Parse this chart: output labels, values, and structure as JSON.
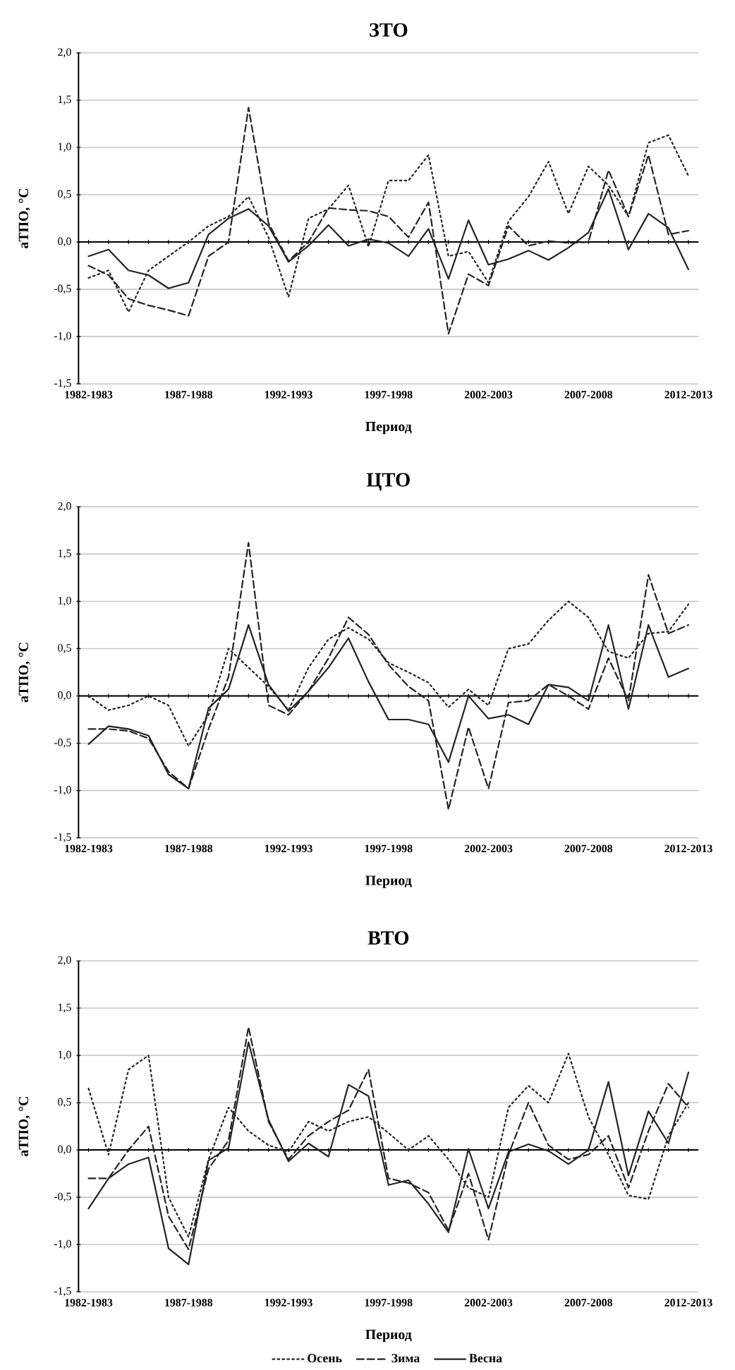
{
  "chart_data": [
    {
      "type": "line",
      "title": "ЗТО",
      "xlabel": "Период",
      "ylabel": "аТПО, °С",
      "categories": [
        "1982-1983",
        null,
        null,
        null,
        null,
        "1987-1988",
        null,
        null,
        null,
        null,
        "1992-1993",
        null,
        null,
        null,
        null,
        "1997-1998",
        null,
        null,
        null,
        null,
        "2002-2003",
        null,
        null,
        null,
        null,
        "2007-2008",
        null,
        null,
        null,
        null,
        "2012-2013"
      ],
      "ylim": [
        -1.5,
        2.0
      ],
      "yticks": [
        {
          "value": -1.5,
          "label": "-1,5"
        },
        {
          "value": -1.0,
          "label": "-1,0"
        },
        {
          "value": -0.5,
          "label": "-0,5"
        },
        {
          "value": 0,
          "label": "0,0"
        },
        {
          "value": 0.5,
          "label": "0,5"
        },
        {
          "value": 1.0,
          "label": "1,0"
        },
        {
          "value": 1.5,
          "label": "1,5"
        },
        {
          "value": 2.0,
          "label": "2,0"
        }
      ],
      "grid": "y",
      "series": [
        {
          "color": "#222222",
          "line_style": "dotted",
          "values": [
            -0.38,
            -0.3,
            -0.74,
            -0.3,
            -0.15,
            0.0,
            0.17,
            0.27,
            0.48,
            0.05,
            -0.58,
            0.25,
            0.35,
            0.6,
            -0.05,
            0.65,
            0.65,
            0.92,
            -0.15,
            -0.1,
            -0.43,
            0.22,
            0.48,
            0.85,
            0.3,
            0.8,
            0.6,
            0.27,
            1.05,
            1.13,
            0.7
          ]
        },
        {
          "color": "#222222",
          "line_style": "dashed",
          "values": [
            -0.25,
            -0.35,
            -0.6,
            -0.67,
            -0.72,
            -0.78,
            -0.15,
            0.0,
            1.42,
            0.2,
            -0.2,
            0.0,
            0.36,
            0.34,
            0.33,
            0.27,
            0.05,
            0.42,
            -0.97,
            -0.34,
            -0.46,
            0.17,
            -0.04,
            0.01,
            -0.01,
            0.0,
            0.76,
            0.27,
            0.92,
            0.08,
            0.12
          ]
        },
        {
          "color": "#222222",
          "line_style": "solid",
          "values": [
            -0.15,
            -0.08,
            -0.3,
            -0.35,
            -0.49,
            -0.43,
            0.08,
            0.25,
            0.35,
            0.17,
            -0.21,
            -0.04,
            0.18,
            -0.04,
            0.03,
            -0.01,
            -0.15,
            0.14,
            -0.39,
            0.23,
            -0.24,
            -0.18,
            -0.09,
            -0.19,
            -0.06,
            0.1,
            0.56,
            -0.08,
            0.3,
            0.15,
            -0.29
          ]
        }
      ]
    },
    {
      "type": "line",
      "title": "ЦТО",
      "xlabel": "Период",
      "ylabel": "аТПО, °С",
      "categories": [
        "1982-1983",
        null,
        null,
        null,
        null,
        "1987-1988",
        null,
        null,
        null,
        null,
        "1992-1993",
        null,
        null,
        null,
        null,
        "1997-1998",
        null,
        null,
        null,
        null,
        "2002-2003",
        null,
        null,
        null,
        null,
        "2007-2008",
        null,
        null,
        null,
        null,
        "2012-2013"
      ],
      "ylim": [
        -1.5,
        2.0
      ],
      "yticks": [
        {
          "value": -1.5,
          "label": "-1,5"
        },
        {
          "value": -1.0,
          "label": "-1,0"
        },
        {
          "value": -0.5,
          "label": "-0,5"
        },
        {
          "value": 0,
          "label": "0,0"
        },
        {
          "value": 0.5,
          "label": "0,5"
        },
        {
          "value": 1.0,
          "label": "1,0"
        },
        {
          "value": 1.5,
          "label": "1,5"
        },
        {
          "value": 2.0,
          "label": "2,0"
        }
      ],
      "grid": "y",
      "series": [
        {
          "color": "#222222",
          "line_style": "dotted",
          "values": [
            0.0,
            -0.15,
            -0.1,
            0.0,
            -0.1,
            -0.53,
            -0.2,
            0.5,
            0.3,
            0.1,
            -0.15,
            0.3,
            0.6,
            0.72,
            0.6,
            0.35,
            0.25,
            0.14,
            -0.12,
            0.07,
            -0.1,
            0.5,
            0.55,
            0.8,
            1.0,
            0.83,
            0.47,
            0.4,
            0.66,
            0.68,
            0.97
          ]
        },
        {
          "color": "#222222",
          "line_style": "dashed",
          "values": [
            -0.35,
            -0.35,
            -0.37,
            -0.45,
            -0.8,
            -0.98,
            -0.35,
            0.2,
            1.62,
            -0.1,
            -0.2,
            0.05,
            0.4,
            0.83,
            0.65,
            0.33,
            0.1,
            -0.05,
            -1.2,
            -0.33,
            -0.98,
            -0.07,
            -0.05,
            0.12,
            0.0,
            -0.14,
            0.4,
            -0.05,
            1.28,
            0.66,
            0.75
          ]
        },
        {
          "color": "#222222",
          "line_style": "solid",
          "values": [
            -0.51,
            -0.32,
            -0.35,
            -0.42,
            -0.83,
            -0.98,
            -0.13,
            0.07,
            0.75,
            0.12,
            -0.16,
            0.05,
            0.3,
            0.61,
            0.15,
            -0.25,
            -0.25,
            -0.3,
            -0.7,
            0.0,
            -0.24,
            -0.2,
            -0.3,
            0.12,
            0.09,
            -0.05,
            0.75,
            -0.14,
            0.75,
            0.2,
            0.29
          ]
        }
      ]
    },
    {
      "type": "line",
      "title": "ВТО",
      "xlabel": "Период",
      "ylabel": "аТПО, °С",
      "legend": "bottom",
      "categories": [
        "1982-1983",
        null,
        null,
        null,
        null,
        "1987-1988",
        null,
        null,
        null,
        null,
        "1992-1993",
        null,
        null,
        null,
        null,
        "1997-1998",
        null,
        null,
        null,
        null,
        "2002-2003",
        null,
        null,
        null,
        null,
        "2007-2008",
        null,
        null,
        null,
        null,
        "2012-2013"
      ],
      "ylim": [
        -1.5,
        2.0
      ],
      "yticks": [
        {
          "value": -1.5,
          "label": "-1,5"
        },
        {
          "value": -1.0,
          "label": "-1,0"
        },
        {
          "value": -0.5,
          "label": "-0,5"
        },
        {
          "value": 0,
          "label": "0,0"
        },
        {
          "value": 0.5,
          "label": "0,5"
        },
        {
          "value": 1.0,
          "label": "1,0"
        },
        {
          "value": 1.5,
          "label": "1,5"
        },
        {
          "value": 2.0,
          "label": "2,0"
        }
      ],
      "grid": "y",
      "series": [
        {
          "name": "Осень",
          "color": "#222222",
          "line_style": "dotted",
          "values": [
            0.65,
            -0.05,
            0.85,
            1.0,
            -0.5,
            -0.92,
            -0.1,
            0.45,
            0.2,
            0.05,
            -0.02,
            0.3,
            0.2,
            0.3,
            0.35,
            0.18,
            0.0,
            0.15,
            -0.1,
            -0.4,
            -0.5,
            0.45,
            0.68,
            0.5,
            1.02,
            0.35,
            -0.05,
            -0.48,
            -0.52,
            0.15,
            0.5
          ]
        },
        {
          "name": "Зима",
          "color": "#222222",
          "line_style": "dashed",
          "values": [
            -0.3,
            -0.3,
            0.0,
            0.25,
            -0.7,
            -1.05,
            -0.2,
            0.1,
            1.3,
            0.3,
            -0.1,
            0.15,
            0.3,
            0.42,
            0.85,
            -0.3,
            -0.35,
            -0.45,
            -0.85,
            -0.25,
            -0.95,
            -0.05,
            0.5,
            0.05,
            -0.1,
            -0.05,
            0.15,
            -0.4,
            0.2,
            0.7,
            0.45
          ]
        },
        {
          "name": "Весна",
          "color": "#222222",
          "line_style": "solid",
          "values": [
            -0.62,
            -0.3,
            -0.15,
            -0.08,
            -1.04,
            -1.21,
            -0.11,
            0.02,
            1.14,
            0.32,
            -0.12,
            0.07,
            -0.07,
            0.69,
            0.57,
            -0.37,
            -0.32,
            -0.57,
            -0.87,
            0.01,
            -0.62,
            -0.02,
            0.06,
            -0.01,
            -0.15,
            0.0,
            0.72,
            -0.27,
            0.41,
            0.07,
            0.82
          ]
        }
      ]
    }
  ]
}
